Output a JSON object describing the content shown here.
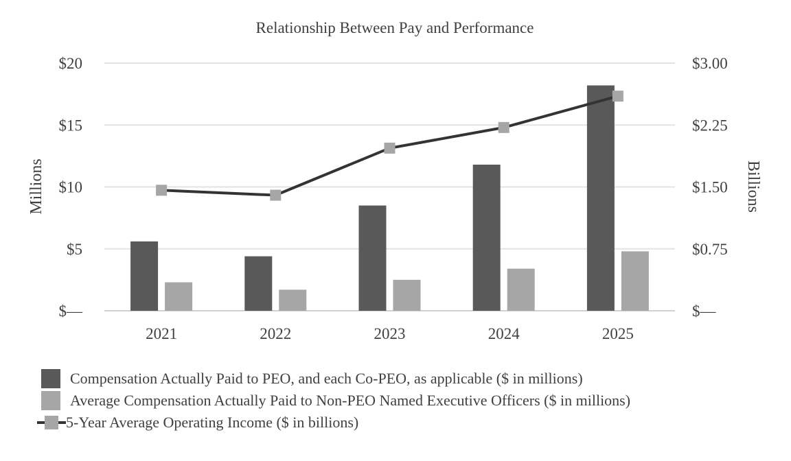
{
  "chart_data": {
    "type": "bar",
    "title": "Relationship Between Pay and Performance",
    "categories": [
      "2021",
      "2022",
      "2023",
      "2024",
      "2025"
    ],
    "y_left": {
      "label": "Millions",
      "range": [
        0,
        20
      ],
      "ticks": [
        0,
        5,
        10,
        15,
        20
      ],
      "tick_labels": [
        "$—",
        "$5",
        "$10",
        "$15",
        "$20"
      ]
    },
    "y_right": {
      "label": "Billions",
      "range": [
        0,
        3.0
      ],
      "ticks": [
        0,
        0.75,
        1.5,
        2.25,
        3.0
      ],
      "tick_labels": [
        "$—",
        "$0.75",
        "$1.50",
        "$2.25",
        "$3.00"
      ]
    },
    "grid": true,
    "legend_position": "bottom",
    "series": [
      {
        "name": "Compensation Actually Paid to PEO, and each Co-PEO, as applicable ($ in millions)",
        "type": "bar",
        "axis": "left",
        "color": "#595959",
        "values": [
          5.6,
          4.4,
          8.5,
          11.8,
          18.2
        ]
      },
      {
        "name": "Average Compensation Actually Paid to Non-PEO Named Executive Officers ($ in millions)",
        "type": "bar",
        "axis": "left",
        "color": "#a6a6a6",
        "values": [
          2.3,
          1.7,
          2.5,
          3.4,
          4.8
        ]
      },
      {
        "name": "5-Year Average Operating Income ($ in billions)",
        "type": "line",
        "axis": "right",
        "color": "#333333",
        "marker_color": "#a6a6a6",
        "values": [
          1.46,
          1.4,
          1.97,
          2.22,
          2.6
        ]
      }
    ]
  }
}
